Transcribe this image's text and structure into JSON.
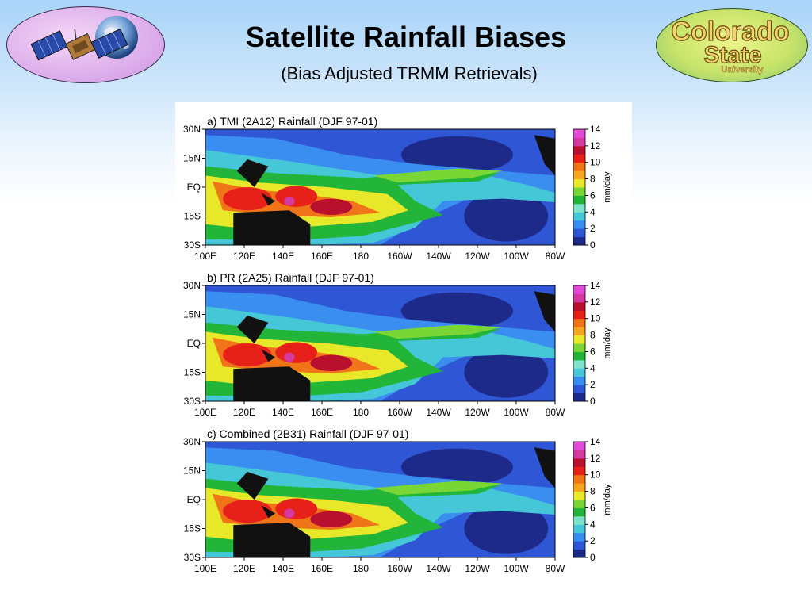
{
  "slide": {
    "title": "Satellite Rainfall Biases",
    "subtitle": "(Bias Adjusted TRMM Retrievals)"
  },
  "logos": {
    "left": {
      "icon": "satellite-earth-icon"
    },
    "right": {
      "line1": "Colorado",
      "line2": "State",
      "line3": "University"
    }
  },
  "map_axes": {
    "lat_labels": [
      "30N",
      "15N",
      "EQ",
      "15S",
      "30S"
    ],
    "lon_labels": [
      "100E",
      "120E",
      "140E",
      "160E",
      "180",
      "160W",
      "140W",
      "120W",
      "100W",
      "80W"
    ]
  },
  "colorbar": {
    "unit_label": "mm/day",
    "tick_labels": [
      "14",
      "12",
      "10",
      "8",
      "6",
      "4",
      "2",
      "0"
    ],
    "colors": [
      "#1e2a8a",
      "#2f56d4",
      "#3a8ef0",
      "#45c7d8",
      "#7fe3c9",
      "#22b53a",
      "#7ad635",
      "#e8e82a",
      "#f5a51f",
      "#f07418",
      "#e8201a",
      "#b8102e",
      "#d43aa0",
      "#e24ad8"
    ]
  },
  "panels": [
    {
      "title": "a) TMI (2A12) Rainfall (DJF 97-01)"
    },
    {
      "title": "b) PR (2A25) Rainfall (DJF 97-01)"
    },
    {
      "title": "c) Combined (2B31) Rainfall (DJF 97-01)"
    }
  ]
}
